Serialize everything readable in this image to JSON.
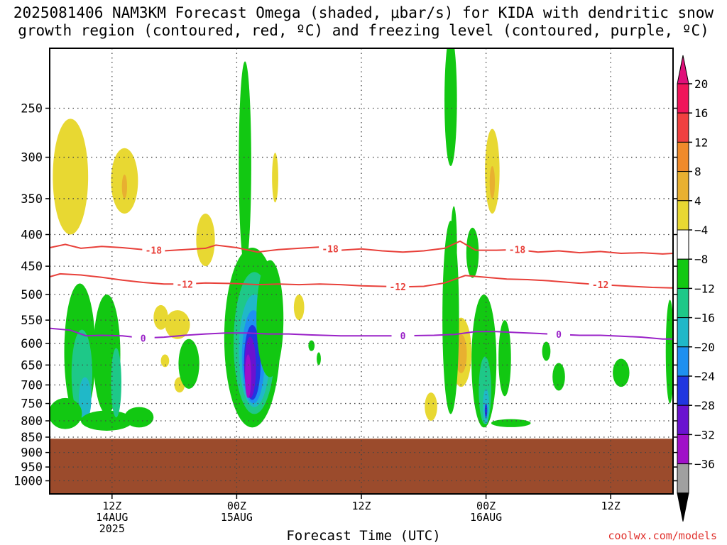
{
  "title_line1": "2025081406 NAM3KM Forecast Omega (shaded, μbar/s) for KIDA with dendritic snow",
  "title_line2": "growth region (contoured, red, ºC) and freezing level (contoured, purple, ºC)",
  "credit": "coolwx.com/models",
  "chart_data": {
    "type": "heatmap",
    "title": "2025081406 NAM3KM Forecast Omega (shaded, μbar/s) for KIDA with dendritic snow growth region (contoured, red, ºC) and freezing level (contoured, purple, ºC)",
    "xlabel": "Forecast Time (UTC)",
    "ylabel": "",
    "x_range_hours": [
      6,
      66
    ],
    "y_range_hpa": [
      1050,
      200
    ],
    "y_scale": "log-pressure (inverted)",
    "grid": true,
    "y_ticks": [
      250,
      300,
      350,
      400,
      450,
      500,
      550,
      600,
      650,
      700,
      750,
      800,
      850,
      900,
      950,
      1000
    ],
    "x_ticks": [
      {
        "hour": 12,
        "line1": "12Z",
        "line2": "14AUG",
        "line3": "2025"
      },
      {
        "hour": 24,
        "line1": "00Z",
        "line2": "15AUG",
        "line3": ""
      },
      {
        "hour": 36,
        "line1": "12Z",
        "line2": "",
        "line3": ""
      },
      {
        "hour": 48,
        "line1": "00Z",
        "line2": "16AUG",
        "line3": ""
      },
      {
        "hour": 60,
        "line1": "12Z",
        "line2": "",
        "line3": ""
      }
    ],
    "colorbar": {
      "levels": [
        "20",
        "16",
        "12",
        "8",
        "4",
        "−4",
        "−8",
        "−12",
        "−16",
        "−20",
        "−24",
        "−28",
        "−32",
        "−36"
      ],
      "colors": [
        "#f0155a",
        "#f04040",
        "#f08a2a",
        "#e8b030",
        "#e8d832",
        "#ffffff",
        "#12c812",
        "#1ec888",
        "#20b8c8",
        "#1e90f0",
        "#2036e0",
        "#6a12d0",
        "#a010c8",
        "#a0a0a0",
        "#000000"
      ],
      "top_arrow_color": "#e0107a",
      "bottom_arrow_color": "#000000"
    },
    "ground_level_hpa": 855,
    "ground_color": "#9b4b2c",
    "contours": [
      {
        "name": "-18",
        "color": "#e8403a",
        "label_hours": [
          16,
          33,
          51
        ],
        "points": [
          [
            6,
            420
          ],
          [
            7.5,
            415
          ],
          [
            9,
            421
          ],
          [
            11,
            418
          ],
          [
            13,
            420
          ],
          [
            15,
            423
          ],
          [
            17,
            425
          ],
          [
            19,
            423
          ],
          [
            21,
            421
          ],
          [
            22,
            416
          ],
          [
            24,
            420
          ],
          [
            26,
            427
          ],
          [
            28,
            423
          ],
          [
            30,
            421
          ],
          [
            32,
            419
          ],
          [
            34,
            424
          ],
          [
            36,
            422
          ],
          [
            38,
            425
          ],
          [
            40,
            427
          ],
          [
            42,
            425
          ],
          [
            44,
            421
          ],
          [
            45.5,
            410
          ],
          [
            47,
            424
          ],
          [
            49,
            424
          ],
          [
            51,
            423
          ],
          [
            53,
            427
          ],
          [
            55,
            425
          ],
          [
            57,
            428
          ],
          [
            59,
            426
          ],
          [
            61,
            429
          ],
          [
            63,
            428
          ],
          [
            65,
            430
          ],
          [
            66,
            429
          ]
        ]
      },
      {
        "name": "-12",
        "color": "#e8403a",
        "label_hours": [
          19,
          39.5,
          59
        ],
        "points": [
          [
            6,
            468
          ],
          [
            7,
            463
          ],
          [
            9,
            465
          ],
          [
            11,
            469
          ],
          [
            13,
            474
          ],
          [
            15,
            478
          ],
          [
            17,
            481
          ],
          [
            19,
            481
          ],
          [
            21,
            479
          ],
          [
            24,
            480
          ],
          [
            26,
            482
          ],
          [
            28,
            481
          ],
          [
            30,
            482
          ],
          [
            32,
            481
          ],
          [
            34,
            482
          ],
          [
            36,
            484
          ],
          [
            38,
            485
          ],
          [
            40,
            486
          ],
          [
            42,
            485
          ],
          [
            44,
            479
          ],
          [
            46,
            466
          ],
          [
            48,
            469
          ],
          [
            50,
            472
          ],
          [
            52,
            473
          ],
          [
            54,
            475
          ],
          [
            56,
            478
          ],
          [
            58,
            481
          ],
          [
            60,
            483
          ],
          [
            62,
            485
          ],
          [
            64,
            487
          ],
          [
            66,
            488
          ]
        ]
      },
      {
        "name": "0",
        "color": "#9a22c8",
        "label_hours": [
          15,
          40,
          55
        ],
        "points": [
          [
            6,
            567
          ],
          [
            8,
            571
          ],
          [
            9.5,
            583
          ],
          [
            11,
            582
          ],
          [
            13,
            583
          ],
          [
            15,
            588
          ],
          [
            17,
            586
          ],
          [
            19,
            582
          ],
          [
            21,
            579
          ],
          [
            23,
            577
          ],
          [
            25,
            577
          ],
          [
            27,
            579
          ],
          [
            29,
            579
          ],
          [
            31,
            581
          ],
          [
            34,
            583
          ],
          [
            37,
            583
          ],
          [
            40,
            583
          ],
          [
            43,
            582
          ],
          [
            45,
            580
          ],
          [
            47,
            574
          ],
          [
            49,
            574
          ],
          [
            51,
            576
          ],
          [
            53,
            578
          ],
          [
            55,
            580
          ],
          [
            57,
            582
          ],
          [
            59,
            582
          ],
          [
            61,
            584
          ],
          [
            63,
            586
          ],
          [
            65,
            590
          ],
          [
            66,
            590
          ]
        ]
      }
    ],
    "omega_features": [
      {
        "level": "4",
        "cx": 8.0,
        "cy": 330,
        "rx": 1.7,
        "ry": 70
      },
      {
        "level": "4",
        "cx": 13.2,
        "cy": 330,
        "rx": 1.3,
        "ry": 40
      },
      {
        "level": "8",
        "cx": 13.2,
        "cy": 335,
        "rx": 0.25,
        "ry": 15
      },
      {
        "level": "4",
        "cx": 16.7,
        "cy": 545,
        "rx": 0.7,
        "ry": 25
      },
      {
        "level": "4",
        "cx": 17.1,
        "cy": 640,
        "rx": 0.4,
        "ry": 15
      },
      {
        "level": "4",
        "cx": 18.3,
        "cy": 560,
        "rx": 1.2,
        "ry": 30
      },
      {
        "level": "4",
        "cx": 18.5,
        "cy": 700,
        "rx": 0.5,
        "ry": 20
      },
      {
        "level": "4",
        "cx": 21.0,
        "cy": 410,
        "rx": 0.9,
        "ry": 40
      },
      {
        "level": "4",
        "cx": 27.7,
        "cy": 325,
        "rx": 0.3,
        "ry": 30
      },
      {
        "level": "4",
        "cx": 30.0,
        "cy": 525,
        "rx": 0.5,
        "ry": 25
      },
      {
        "level": "4",
        "cx": 45.6,
        "cy": 625,
        "rx": 1.0,
        "ry": 80
      },
      {
        "level": "8",
        "cx": 45.6,
        "cy": 625,
        "rx": 0.55,
        "ry": 45
      },
      {
        "level": "4",
        "cx": 48.6,
        "cy": 320,
        "rx": 0.7,
        "ry": 50
      },
      {
        "level": "8",
        "cx": 48.6,
        "cy": 330,
        "rx": 0.25,
        "ry": 20
      },
      {
        "level": "4",
        "cx": 42.7,
        "cy": 760,
        "rx": 0.6,
        "ry": 40
      },
      {
        "level": "-4",
        "cx": 8.9,
        "cy": 640,
        "rx": 1.5,
        "ry": 160
      },
      {
        "level": "-8",
        "cx": 9.1,
        "cy": 680,
        "rx": 1.0,
        "ry": 110
      },
      {
        "level": "-12",
        "cx": 9.4,
        "cy": 740,
        "rx": 0.6,
        "ry": 60
      },
      {
        "level": "-4",
        "cx": 7.5,
        "cy": 780,
        "rx": 1.6,
        "ry": 45
      },
      {
        "level": "-4",
        "cx": 11.5,
        "cy": 800,
        "rx": 2.5,
        "ry": 30
      },
      {
        "level": "-4",
        "cx": 11.5,
        "cy": 640,
        "rx": 1.3,
        "ry": 140
      },
      {
        "level": "-8",
        "cx": 12.4,
        "cy": 700,
        "rx": 0.5,
        "ry": 90
      },
      {
        "level": "-4",
        "cx": 19.4,
        "cy": 650,
        "rx": 1.0,
        "ry": 60
      },
      {
        "level": "-4",
        "cx": 14.6,
        "cy": 790,
        "rx": 1.4,
        "ry": 30
      },
      {
        "level": "-4",
        "cx": 24.8,
        "cy": 330,
        "rx": 0.6,
        "ry": 120
      },
      {
        "level": "-4",
        "cx": 25.5,
        "cy": 620,
        "rx": 2.7,
        "ry": 200
      },
      {
        "level": "-8",
        "cx": 25.7,
        "cy": 620,
        "rx": 2.0,
        "ry": 160
      },
      {
        "level": "-12",
        "cx": 25.7,
        "cy": 630,
        "rx": 1.5,
        "ry": 130
      },
      {
        "level": "-16",
        "cx": 25.6,
        "cy": 640,
        "rx": 1.1,
        "ry": 110
      },
      {
        "level": "-20",
        "cx": 25.5,
        "cy": 650,
        "rx": 0.8,
        "ry": 90
      },
      {
        "level": "-24",
        "cx": 25.3,
        "cy": 660,
        "rx": 0.55,
        "ry": 75
      },
      {
        "level": "-28",
        "cx": 25.1,
        "cy": 680,
        "rx": 0.3,
        "ry": 55
      },
      {
        "level": "-4",
        "cx": 27.2,
        "cy": 560,
        "rx": 1.3,
        "ry": 120
      },
      {
        "level": "-4",
        "cx": 31.2,
        "cy": 605,
        "rx": 0.3,
        "ry": 12
      },
      {
        "level": "-4",
        "cx": 31.9,
        "cy": 635,
        "rx": 0.2,
        "ry": 15
      },
      {
        "level": "-4",
        "cx": 44.6,
        "cy": 250,
        "rx": 0.6,
        "ry": 60
      },
      {
        "level": "-4",
        "cx": 44.6,
        "cy": 580,
        "rx": 0.8,
        "ry": 200
      },
      {
        "level": "-4",
        "cx": 44.9,
        "cy": 420,
        "rx": 0.3,
        "ry": 60
      },
      {
        "level": "-4",
        "cx": 46.7,
        "cy": 430,
        "rx": 0.6,
        "ry": 40
      },
      {
        "level": "-4",
        "cx": 47.8,
        "cy": 660,
        "rx": 1.2,
        "ry": 160
      },
      {
        "level": "-8",
        "cx": 47.9,
        "cy": 720,
        "rx": 0.6,
        "ry": 90
      },
      {
        "level": "-12",
        "cx": 48.0,
        "cy": 760,
        "rx": 0.3,
        "ry": 50
      },
      {
        "level": "-20",
        "cx": 48.0,
        "cy": 770,
        "rx": 0.12,
        "ry": 20
      },
      {
        "level": "-4",
        "cx": 49.8,
        "cy": 640,
        "rx": 0.6,
        "ry": 90
      },
      {
        "level": "-4",
        "cx": 50.4,
        "cy": 807,
        "rx": 1.9,
        "ry": 12
      },
      {
        "level": "-4",
        "cx": 53.8,
        "cy": 618,
        "rx": 0.4,
        "ry": 22
      },
      {
        "level": "-4",
        "cx": 55.0,
        "cy": 680,
        "rx": 0.6,
        "ry": 35
      },
      {
        "level": "-4",
        "cx": 61.0,
        "cy": 670,
        "rx": 0.8,
        "ry": 35
      },
      {
        "level": "-4",
        "cx": 65.7,
        "cy": 630,
        "rx": 0.4,
        "ry": 120
      }
    ]
  }
}
